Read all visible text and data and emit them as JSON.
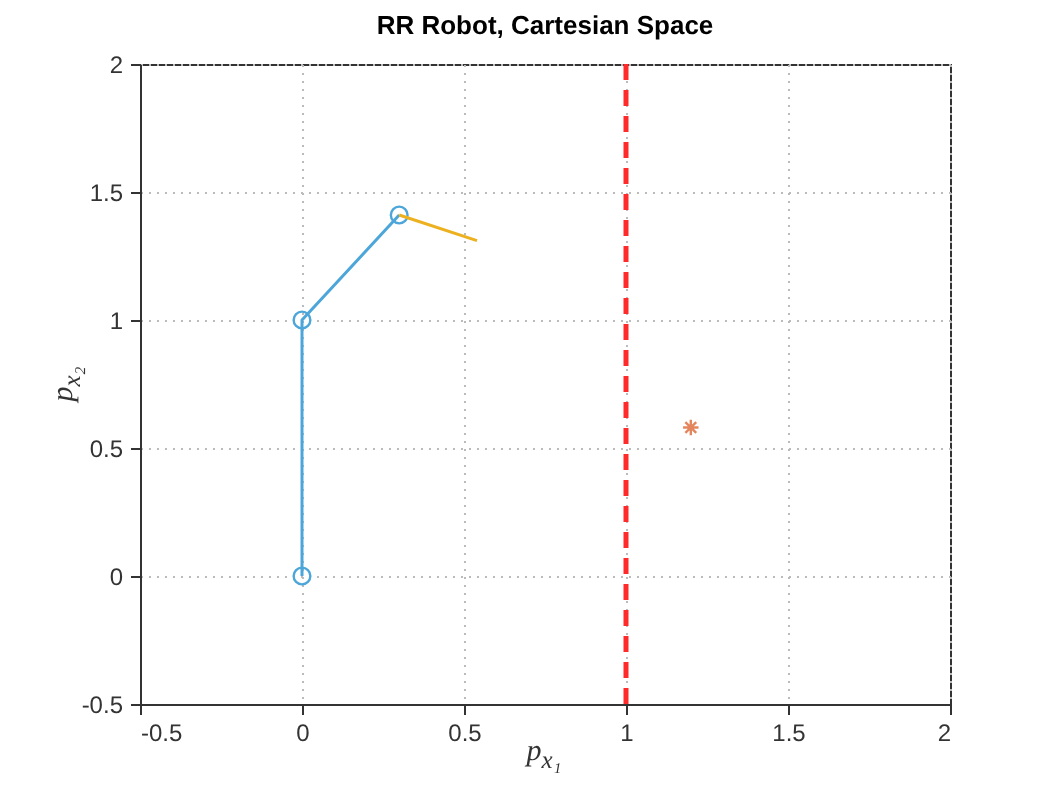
{
  "chart_data": {
    "type": "line",
    "title": "RR Robot, Cartesian Space",
    "xlabel": "p$_{x₁}$",
    "ylabel": "p$_{x₂}$",
    "series": [
      {
        "color": "#4da6d9",
        "marker": "circle",
        "x": [
          0,
          0,
          0.3
        ],
        "values": [
          0,
          1,
          1.41
        ]
      },
      {
        "color": "#edb120",
        "marker": "none",
        "x": [
          0.3,
          0.54
        ],
        "values": [
          1.41,
          1.31
        ]
      },
      {
        "type": "scatter",
        "color": "#d95319",
        "marker": "cross",
        "x": [
          1.2
        ],
        "values": [
          0.58
        ]
      }
    ],
    "ref_lines": [
      {
        "axis": "x",
        "value": 1,
        "color": "#ff2a2a",
        "line_style": "dashed"
      }
    ],
    "xlim": [
      -0.5,
      2
    ],
    "xticks": [
      -0.5,
      0,
      0.5,
      1,
      1.5,
      2
    ],
    "ylim": [
      -0.5,
      2
    ],
    "yticks": [
      -0.5,
      0,
      0.5,
      1,
      1.5,
      2
    ],
    "grid": true
  }
}
